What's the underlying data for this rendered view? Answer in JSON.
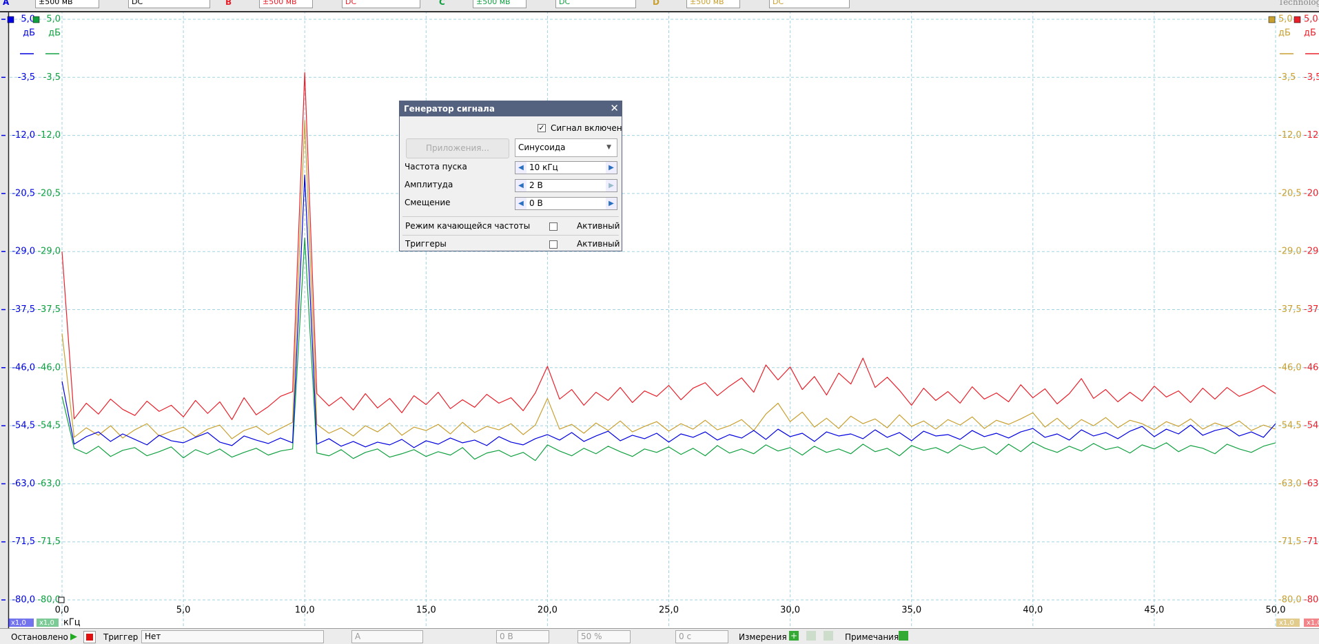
{
  "toolbar": {
    "channels": [
      {
        "letter": "A",
        "range": "±500 мВ",
        "coupling": "DC"
      },
      {
        "letter": "B",
        "range": "±500 мВ",
        "coupling": "DC"
      },
      {
        "letter": "C",
        "range": "±500 мВ",
        "coupling": "DC"
      },
      {
        "letter": "D",
        "range": "±500 мВ",
        "coupling": "DC"
      }
    ],
    "logo": "Technology"
  },
  "chart_data": {
    "type": "line",
    "y_unit": "дБ",
    "x_label": "кГц",
    "probe_scale": "x1,0",
    "grid": true,
    "xlim": [
      0,
      50
    ],
    "ylim": [
      -80,
      5
    ],
    "xticks": [
      {
        "value": 0,
        "label": "0,0"
      },
      {
        "value": 5,
        "label": "5,0"
      },
      {
        "value": 10,
        "label": "10,0"
      },
      {
        "value": 15,
        "label": "15,0"
      },
      {
        "value": 20,
        "label": "20,0"
      },
      {
        "value": 25,
        "label": "25,0"
      },
      {
        "value": 30,
        "label": "30,0"
      },
      {
        "value": 35,
        "label": "35,0"
      },
      {
        "value": 40,
        "label": "40,0"
      },
      {
        "value": 45,
        "label": "45,0"
      },
      {
        "value": 50,
        "label": "50,0"
      }
    ],
    "yticks": [
      {
        "value": 5,
        "label": "5,0"
      },
      {
        "value": -3.5,
        "label": "-3,5"
      },
      {
        "value": -12,
        "label": "-12,0"
      },
      {
        "value": -20.5,
        "label": "-20,5"
      },
      {
        "value": -29,
        "label": "-29,0"
      },
      {
        "value": -37.5,
        "label": "-37,5"
      },
      {
        "value": -46,
        "label": "-46,0"
      },
      {
        "value": -54.5,
        "label": "-54,5"
      },
      {
        "value": -63,
        "label": "-63,0"
      },
      {
        "value": -71.5,
        "label": "-71,5"
      },
      {
        "value": -80,
        "label": "-80,0"
      }
    ],
    "x": [
      0,
      0.5,
      1,
      1.5,
      2,
      2.5,
      3,
      3.5,
      4,
      4.5,
      5,
      5.5,
      6,
      6.5,
      7,
      7.5,
      8,
      8.5,
      9,
      9.5,
      10,
      10.5,
      11,
      11.5,
      12,
      12.5,
      13,
      13.5,
      14,
      14.5,
      15,
      15.5,
      16,
      16.5,
      17,
      17.5,
      18,
      18.5,
      19,
      19.5,
      20,
      20.5,
      21,
      21.5,
      22,
      22.5,
      23,
      23.5,
      24,
      24.5,
      25,
      25.5,
      26,
      26.5,
      27,
      27.5,
      28,
      28.5,
      29,
      29.5,
      30,
      30.5,
      31,
      31.5,
      32,
      32.5,
      33,
      33.5,
      34,
      34.5,
      35,
      35.5,
      36,
      36.5,
      37,
      37.5,
      38,
      38.5,
      39,
      39.5,
      40,
      40.5,
      41,
      41.5,
      42,
      42.5,
      43,
      43.5,
      44,
      44.5,
      45,
      45.5,
      46,
      46.5,
      47,
      47.5,
      48,
      48.5,
      49,
      49.5,
      50
    ],
    "series": [
      {
        "name": "A",
        "color": "#0000e0",
        "values": [
          -48.0,
          -57.2,
          -56.1,
          -55.4,
          -56.8,
          -55.7,
          -56.5,
          -57.3,
          -55.9,
          -56.7,
          -57.0,
          -56.2,
          -55.5,
          -56.9,
          -57.4,
          -56.0,
          -56.6,
          -57.1,
          -56.3,
          -57.0,
          -17.8,
          -57.2,
          -56.4,
          -57.5,
          -56.8,
          -57.6,
          -56.9,
          -57.3,
          -56.5,
          -57.7,
          -56.7,
          -57.2,
          -56.3,
          -57.0,
          -56.6,
          -57.4,
          -56.1,
          -56.9,
          -57.3,
          -56.4,
          -55.8,
          -56.6,
          -55.5,
          -56.8,
          -56.0,
          -55.3,
          -56.7,
          -55.9,
          -56.4,
          -55.6,
          -56.9,
          -55.7,
          -56.2,
          -55.4,
          -56.6,
          -55.8,
          -56.3,
          -55.2,
          -56.5,
          -55.0,
          -56.1,
          -55.6,
          -56.8,
          -55.4,
          -56.0,
          -55.7,
          -56.4,
          -55.1,
          -56.2,
          -55.5,
          -56.7,
          -55.3,
          -56.0,
          -55.8,
          -56.5,
          -55.2,
          -56.1,
          -55.6,
          -56.3,
          -55.4,
          -54.9,
          -56.2,
          -55.7,
          -56.6,
          -55.1,
          -56.0,
          -55.5,
          -56.4,
          -55.3,
          -54.6,
          -56.1,
          -55.0,
          -55.7,
          -54.4,
          -55.9,
          -55.2,
          -54.8,
          -56.0,
          -55.4,
          -56.2,
          -54.2
        ]
      },
      {
        "name": "B",
        "color": "#e8202a",
        "values": [
          -29.0,
          -53.5,
          -51.2,
          -52.8,
          -50.6,
          -52.1,
          -53.0,
          -50.9,
          -52.4,
          -51.5,
          -53.2,
          -50.8,
          -52.7,
          -51.0,
          -53.6,
          -50.4,
          -52.9,
          -51.7,
          -50.2,
          -49.5,
          -2.8,
          -49.8,
          -51.6,
          -50.3,
          -52.2,
          -49.8,
          -51.9,
          -50.5,
          -52.6,
          -50.1,
          -51.4,
          -49.6,
          -52.0,
          -50.7,
          -51.8,
          -49.9,
          -51.2,
          -50.4,
          -52.3,
          -49.7,
          -45.8,
          -50.6,
          -49.2,
          -51.5,
          -49.6,
          -50.8,
          -48.9,
          -51.1,
          -49.4,
          -50.2,
          -48.6,
          -50.7,
          -49.0,
          -48.2,
          -50.1,
          -48.7,
          -47.5,
          -49.6,
          -45.6,
          -47.8,
          -45.9,
          -49.2,
          -47.3,
          -50.0,
          -46.8,
          -48.4,
          -44.6,
          -48.9,
          -47.4,
          -49.3,
          -51.5,
          -49.0,
          -50.8,
          -49.5,
          -51.2,
          -48.8,
          -50.6,
          -49.7,
          -51.0,
          -48.5,
          -50.4,
          -49.1,
          -51.3,
          -49.8,
          -47.6,
          -50.5,
          -49.2,
          -51.0,
          -49.6,
          -50.9,
          -48.7,
          -50.3,
          -49.4,
          -51.1,
          -49.0,
          -50.6,
          -48.9,
          -50.2,
          -49.5,
          -48.6,
          -49.8
        ]
      },
      {
        "name": "C",
        "color": "#10a040",
        "values": [
          -50.2,
          -57.8,
          -58.6,
          -57.5,
          -59.0,
          -58.1,
          -57.7,
          -58.9,
          -58.3,
          -57.6,
          -59.2,
          -58.0,
          -58.7,
          -57.9,
          -59.1,
          -58.4,
          -57.8,
          -58.8,
          -58.2,
          -57.9,
          -27.0,
          -58.5,
          -58.9,
          -58.0,
          -59.3,
          -58.4,
          -57.9,
          -59.1,
          -58.6,
          -58.0,
          -59.0,
          -58.3,
          -58.8,
          -57.7,
          -59.4,
          -58.5,
          -58.1,
          -59.0,
          -58.4,
          -59.6,
          -57.3,
          -58.2,
          -58.9,
          -57.8,
          -58.6,
          -57.5,
          -58.3,
          -59.0,
          -57.9,
          -58.4,
          -57.6,
          -58.7,
          -57.8,
          -58.9,
          -57.4,
          -58.5,
          -57.9,
          -58.6,
          -57.3,
          -58.2,
          -57.7,
          -58.8,
          -57.5,
          -58.4,
          -57.9,
          -58.6,
          -57.2,
          -58.3,
          -57.8,
          -58.9,
          -57.4,
          -58.1,
          -57.7,
          -58.5,
          -57.3,
          -58.0,
          -57.6,
          -58.7,
          -57.2,
          -58.3,
          -56.9,
          -57.8,
          -58.4,
          -57.5,
          -58.2,
          -57.1,
          -58.0,
          -57.6,
          -58.5,
          -57.3,
          -57.9,
          -57.0,
          -58.3,
          -57.4,
          -57.8,
          -58.6,
          -57.2,
          -57.9,
          -58.4,
          -57.5,
          -57.0
        ]
      },
      {
        "name": "D",
        "color": "#c8a030",
        "values": [
          -41.0,
          -56.2,
          -54.8,
          -55.9,
          -54.5,
          -56.3,
          -55.1,
          -54.2,
          -56.0,
          -55.3,
          -54.7,
          -56.1,
          -55.0,
          -54.4,
          -56.4,
          -55.2,
          -54.6,
          -55.8,
          -54.9,
          -54.0,
          -9.8,
          -54.3,
          -55.6,
          -54.8,
          -56.0,
          -54.5,
          -55.4,
          -54.1,
          -55.9,
          -54.7,
          -55.2,
          -54.3,
          -55.7,
          -54.0,
          -55.5,
          -54.6,
          -55.1,
          -54.2,
          -55.8,
          -54.4,
          -50.5,
          -55.0,
          -54.3,
          -55.6,
          -54.1,
          -55.2,
          -53.8,
          -55.4,
          -54.6,
          -53.9,
          -55.3,
          -54.2,
          -55.0,
          -53.7,
          -55.1,
          -54.5,
          -53.6,
          -55.2,
          -52.8,
          -51.2,
          -53.9,
          -52.5,
          -54.7,
          -53.4,
          -54.9,
          -53.1,
          -54.2,
          -53.5,
          -54.8,
          -52.9,
          -54.6,
          -53.8,
          -55.0,
          -53.6,
          -54.4,
          -53.2,
          -54.9,
          -53.7,
          -54.3,
          -53.5,
          -52.6,
          -54.7,
          -53.4,
          -55.0,
          -53.6,
          -54.5,
          -53.3,
          -54.8,
          -53.7,
          -54.2,
          -55.1,
          -53.9,
          -54.6,
          -53.5,
          -55.0,
          -54.1,
          -54.7,
          -53.8,
          -55.2,
          -54.4,
          -55.0
        ]
      }
    ]
  },
  "dialog": {
    "title": "Генератор сигнала",
    "enabled_label": "Сигнал включен",
    "apps_button": "Приложения...",
    "waveform": "Синусоида",
    "rows": [
      {
        "label": "Частота пуска",
        "value": "10 кГц"
      },
      {
        "label": "Амплитуда",
        "value": "2 В"
      },
      {
        "label": "Смещение",
        "value": "0 В"
      }
    ],
    "sweep_label": "Режим качающейся частоты",
    "sweep_state": "Активный",
    "triggers_label": "Триггеры",
    "triggers_state": "Активный"
  },
  "status_bar": {
    "state": "Остановлено",
    "trigger_label": "Триггер",
    "trigger_mode": "Нет",
    "trigger_channel": "A",
    "trigger_level": "0 В",
    "pretrigger": "50 %",
    "delay": "0 с",
    "measurements": "Измерения",
    "notes": "Примечания"
  }
}
